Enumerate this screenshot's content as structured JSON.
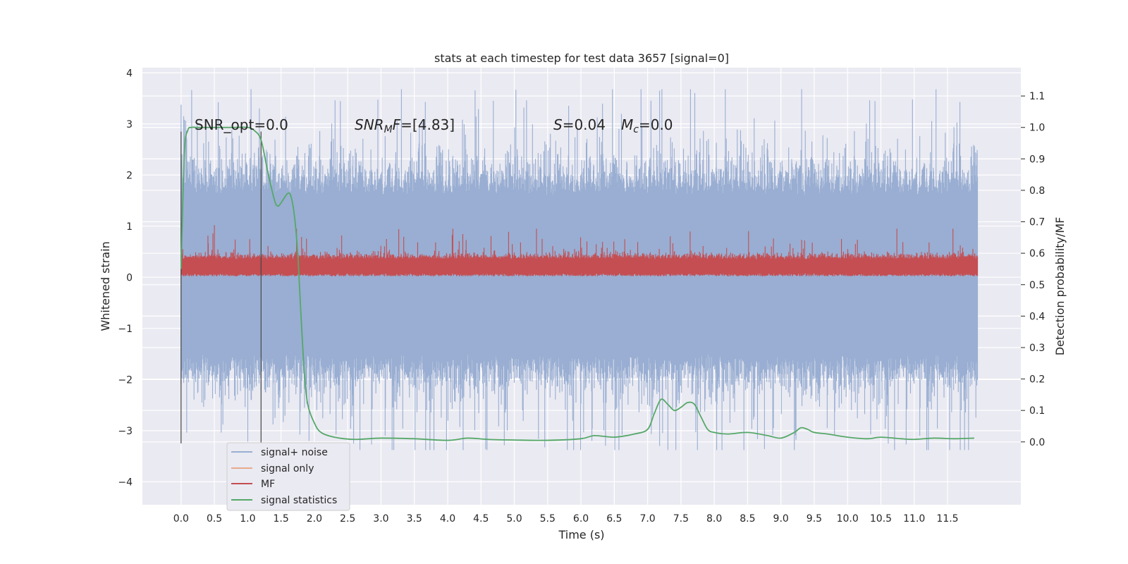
{
  "chart_data": {
    "type": "line",
    "title": "stats at each timestep for test data 3657 [signal=0]",
    "xlabel": "Time (s)",
    "ylabel": "Whitened strain",
    "y2label": "Detection probability/MF",
    "xlim": [
      -0.58,
      12.6
    ],
    "ylim": [
      -4.45,
      4.1
    ],
    "y2lim": [
      -0.2,
      1.19
    ],
    "grid": true,
    "legend_position": "lower-left",
    "x_ticks": [
      "0.0",
      "0.5",
      "1.0",
      "1.5",
      "2.0",
      "2.5",
      "3.0",
      "3.5",
      "4.0",
      "4.5",
      "5.0",
      "5.5",
      "6.0",
      "6.5",
      "7.0",
      "7.5",
      "8.0",
      "8.5",
      "9.0",
      "9.5",
      "10.0",
      "10.5",
      "11.0",
      "11.5"
    ],
    "y_ticks": [
      "4",
      "3",
      "2",
      "1",
      "0",
      "−1",
      "−2",
      "−3",
      "−4"
    ],
    "y2_ticks": [
      "1.1",
      "1.0",
      "0.9",
      "0.8",
      "0.7",
      "0.6",
      "0.5",
      "0.4",
      "0.3",
      "0.2",
      "0.1",
      "0.0"
    ],
    "annotations": {
      "snr_opt": "SNR_opt=0.0",
      "snr_mf_var": "SNR",
      "snr_mf_sub": "M",
      "snr_mf_tail": "F",
      "snr_mf_value": "=[4.83]",
      "s_var": "S",
      "s_value": "=0.04",
      "mc_var": "M",
      "mc_sub": "c",
      "mc_value": "=0.0"
    },
    "markers_x": [
      0.0,
      1.2
    ],
    "series": [
      {
        "name": "signal+ noise",
        "color": "#99aed2",
        "axis": "left",
        "x_range": [
          0.0,
          11.95
        ],
        "typical_range": [
          -1.5,
          1.6
        ],
        "extremes": [
          -3.38,
          3.68
        ]
      },
      {
        "name": "signal only",
        "color": "#e8aa8c",
        "axis": "left",
        "values": []
      },
      {
        "name": "MF",
        "color": "#c44e52",
        "axis": "left",
        "x_range": [
          0.0,
          11.95
        ],
        "typical_range": [
          0.02,
          0.4
        ],
        "extremes": [
          0.0,
          1.02
        ]
      },
      {
        "name": "signal statistics",
        "color": "#55a868",
        "axis": "right",
        "x": [
          0.0,
          0.05,
          0.1,
          0.15,
          0.25,
          0.4,
          0.6,
          0.8,
          1.0,
          1.1,
          1.2,
          1.3,
          1.4,
          1.45,
          1.5,
          1.6,
          1.65,
          1.7,
          1.75,
          1.8,
          1.85,
          1.9,
          2.0,
          2.1,
          2.3,
          2.6,
          3.0,
          3.5,
          4.0,
          4.3,
          4.6,
          5.0,
          5.5,
          6.0,
          6.2,
          6.5,
          6.8,
          7.0,
          7.1,
          7.2,
          7.3,
          7.4,
          7.5,
          7.6,
          7.7,
          7.8,
          7.9,
          8.0,
          8.2,
          8.5,
          8.8,
          9.0,
          9.2,
          9.3,
          9.4,
          9.5,
          9.7,
          10.0,
          10.3,
          10.5,
          10.8,
          11.0,
          11.3,
          11.6,
          11.9
        ],
        "values": [
          0.55,
          0.92,
          0.99,
          1.0,
          1.0,
          1.0,
          1.0,
          1.0,
          1.0,
          0.99,
          0.96,
          0.86,
          0.77,
          0.75,
          0.76,
          0.79,
          0.78,
          0.72,
          0.6,
          0.4,
          0.22,
          0.12,
          0.06,
          0.03,
          0.015,
          0.008,
          0.012,
          0.01,
          0.005,
          0.012,
          0.008,
          0.006,
          0.005,
          0.01,
          0.02,
          0.015,
          0.025,
          0.04,
          0.09,
          0.135,
          0.12,
          0.1,
          0.11,
          0.125,
          0.12,
          0.08,
          0.04,
          0.03,
          0.025,
          0.03,
          0.02,
          0.012,
          0.03,
          0.045,
          0.04,
          0.03,
          0.025,
          0.015,
          0.01,
          0.015,
          0.01,
          0.008,
          0.012,
          0.01,
          0.012
        ]
      }
    ]
  }
}
